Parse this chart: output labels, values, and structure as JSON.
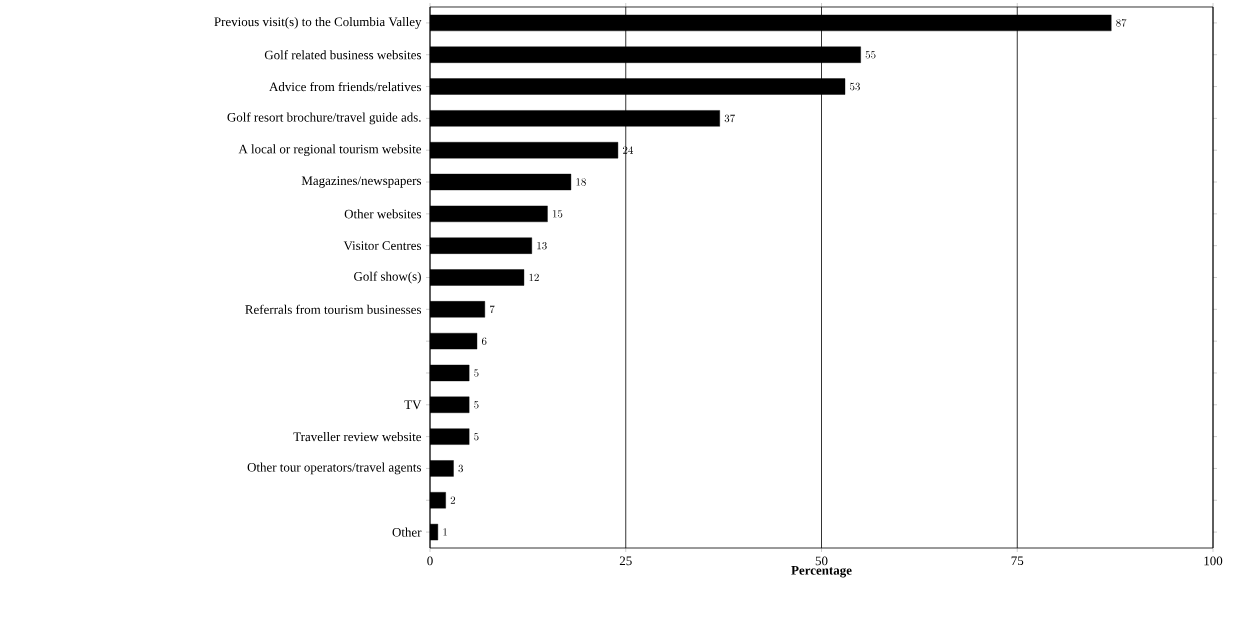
{
  "chart_data": {
    "type": "bar",
    "orientation": "horizontal",
    "categories": [
      "Previous visit(s) to the Columbia Valley",
      "Golf related business websites",
      "Advice from friends/relatives",
      "Golf resort brochure/travel guide ads.",
      "A local or regional tourism website",
      "Magazines/newspapers",
      "Other websites",
      "Visitor Centres",
      "Golf show(s)",
      "Referrals from tourism businesses",
      null,
      null,
      "TV",
      "Traveller review website",
      "Other tour operators/travel agents",
      null,
      "Other"
    ],
    "values": [
      87,
      55,
      53,
      37,
      24,
      18,
      15,
      13,
      12,
      7,
      6,
      5,
      5,
      5,
      3,
      2,
      1
    ],
    "color": "#000000",
    "data_labels": true,
    "xlabel": "Percentage",
    "xlim": [
      0,
      100
    ],
    "xticks": [
      0,
      25,
      50,
      75,
      100
    ],
    "grid": "x"
  }
}
